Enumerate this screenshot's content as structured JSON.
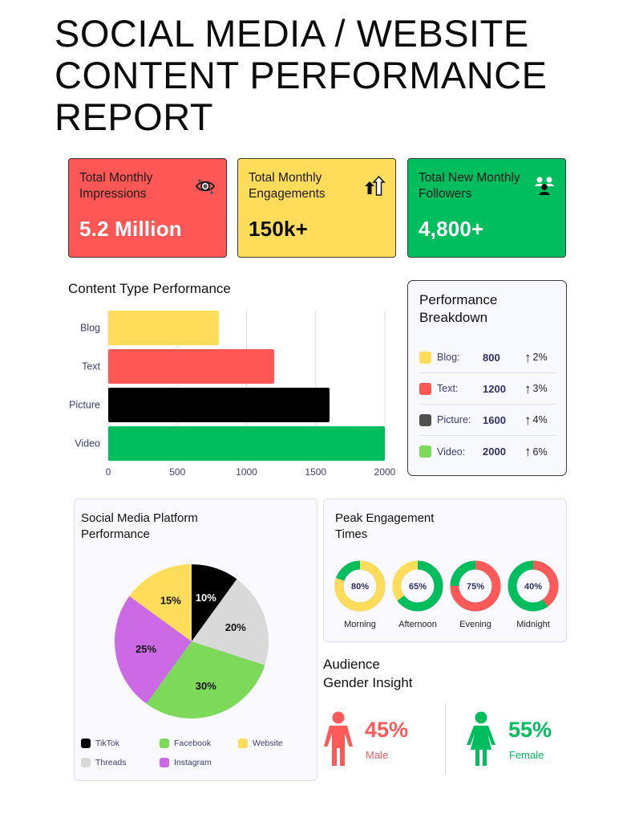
{
  "title_lines": [
    "SOCIAL MEDIA / WEBSITE",
    "CONTENT PERFORMANCE",
    "REPORT"
  ],
  "kpis": [
    {
      "label": "Total Monthly Impressions",
      "value": "5.2  Million",
      "icon": "eye-icon",
      "color": "#ff5656"
    },
    {
      "label": "Total Monthly Engagements",
      "value": "150k+",
      "icon": "arrows-up-icon",
      "color": "#ffdc5a"
    },
    {
      "label": "Total New Monthly Followers",
      "value": "4,800+",
      "icon": "users-group-icon",
      "color": "#00bd5e"
    }
  ],
  "breakdown": {
    "title": "Performance Breakdown",
    "rows": [
      {
        "name": "Blog:",
        "value": "800",
        "change": "2%",
        "color": "#ffdc5a",
        "arrow": "↑"
      },
      {
        "name": "Text:",
        "value": "1200",
        "change": "3%",
        "color": "#ff5656",
        "arrow": "↑"
      },
      {
        "name": "Picture:",
        "value": "1600",
        "change": "4%",
        "color": "#505050",
        "arrow": "↑"
      },
      {
        "name": "Video:",
        "value": "2000",
        "change": "6%",
        "color": "#7dd95a",
        "arrow": "↑"
      }
    ]
  },
  "peak": {
    "title": "Peak Engagement Times"
  },
  "gender": {
    "title_lines": [
      "Audience",
      "Gender Insight"
    ],
    "male": {
      "pct": "45%",
      "label": "Male",
      "color": "#ff5a5a"
    },
    "female": {
      "pct": "55%",
      "label": "Female",
      "color": "#00bd5e"
    }
  },
  "chart_data": [
    {
      "type": "bar",
      "orientation": "horizontal",
      "title": "Content Type Performance",
      "categories": [
        "Blog",
        "Text",
        "Picture",
        "Video"
      ],
      "values": [
        800,
        1200,
        1600,
        2000
      ],
      "colors": [
        "#ffdc5a",
        "#ff5656",
        "#000000",
        "#00bd5e"
      ],
      "xlim": [
        0,
        2000
      ],
      "xticks": [
        0,
        500,
        1000,
        1500,
        2000
      ],
      "grid": true,
      "xlabel": "",
      "ylabel": ""
    },
    {
      "type": "pie",
      "title": "Social Media Platform Performance",
      "slices": [
        {
          "name": "TikTok",
          "value": 10,
          "label": "10%",
          "color": "#000000",
          "text_color": "#ffffff"
        },
        {
          "name": "Threads",
          "value": 20,
          "label": "20%",
          "color": "#d9d9d9",
          "text_color": "#111111"
        },
        {
          "name": "Facebook",
          "value": 30,
          "label": "30%",
          "color": "#7dd95a",
          "text_color": "#111111"
        },
        {
          "name": "Instagram",
          "value": 25,
          "label": "25%",
          "color": "#cc6ae6",
          "text_color": "#111111"
        },
        {
          "name": "Website",
          "value": 15,
          "label": "15%",
          "color": "#ffdc5a",
          "text_color": "#111111"
        }
      ],
      "legend": [
        "TikTok",
        "Facebook",
        "Website",
        "Threads",
        "Instagram"
      ],
      "legend_position": "bottom"
    },
    {
      "type": "donut",
      "title": "Peak Engagement Times",
      "items": [
        {
          "name": "Morning",
          "value": 80,
          "label": "80%",
          "main_color": "#ffdc5a",
          "rest_color": "#00bd5e"
        },
        {
          "name": "Afternoon",
          "value": 65,
          "label": "65%",
          "main_color": "#00bd5e",
          "rest_color": "#ffdc5a"
        },
        {
          "name": "Evening",
          "value": 75,
          "label": "75%",
          "main_color": "#ff5a5a",
          "rest_color": "#00bd5e"
        },
        {
          "name": "Midnight",
          "value": 40,
          "label": "40%",
          "main_color": "#ff5a5a",
          "rest_color": "#00bd5e"
        }
      ]
    }
  ]
}
